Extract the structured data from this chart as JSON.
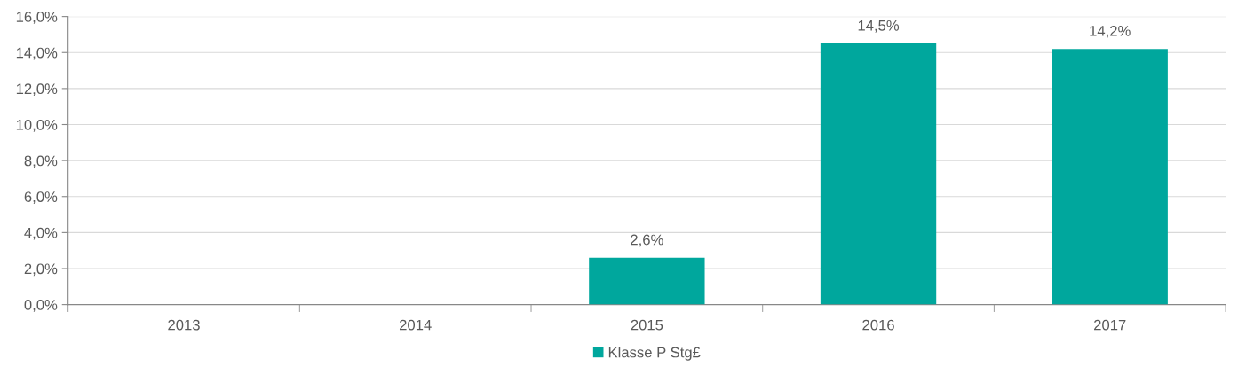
{
  "chart_data": {
    "type": "bar",
    "categories": [
      "2013",
      "2014",
      "2015",
      "2016",
      "2017"
    ],
    "series": [
      {
        "name": "Klasse P Stg£",
        "color": "#00a79d",
        "values": [
          null,
          null,
          2.6,
          14.5,
          14.2
        ],
        "value_labels": [
          null,
          null,
          "2,6%",
          "14,5%",
          "14,2%"
        ]
      }
    ],
    "ylim": [
      0,
      16
    ],
    "yticks": [
      {
        "value": 0,
        "label": "0,0%"
      },
      {
        "value": 2,
        "label": "2,0%"
      },
      {
        "value": 4,
        "label": "4,0%"
      },
      {
        "value": 6,
        "label": "6,0%"
      },
      {
        "value": 8,
        "label": "8,0%"
      },
      {
        "value": 10,
        "label": "10,0%"
      },
      {
        "value": 12,
        "label": "12,0%"
      },
      {
        "value": 14,
        "label": "14,0%"
      },
      {
        "value": 16,
        "label": "16,0%"
      }
    ],
    "grid": "y",
    "legend": "bottom"
  }
}
